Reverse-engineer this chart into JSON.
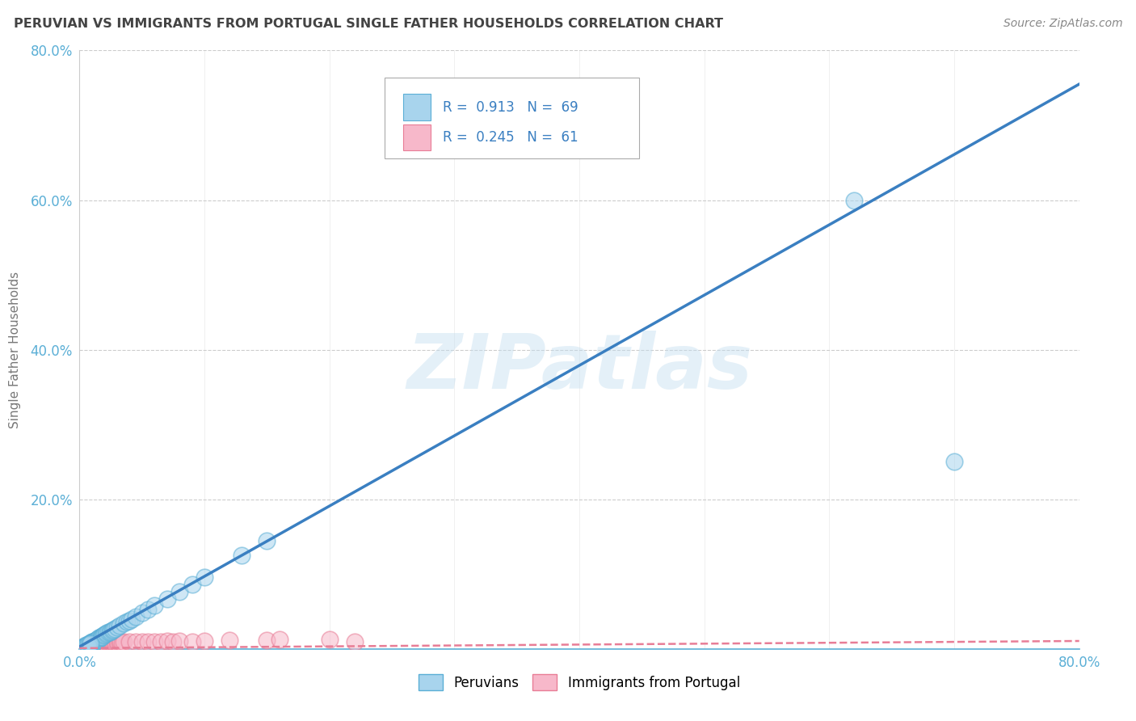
{
  "title": "PERUVIAN VS IMMIGRANTS FROM PORTUGAL SINGLE FATHER HOUSEHOLDS CORRELATION CHART",
  "source": "Source: ZipAtlas.com",
  "ylabel": "Single Father Households",
  "xlim": [
    0.0,
    0.8
  ],
  "ylim": [
    0.0,
    0.8
  ],
  "watermark_text": "ZIPatlas",
  "peruvian_color": "#a8d4ed",
  "portugal_color": "#f7b8ca",
  "peruvian_edge_color": "#5bafd6",
  "portugal_edge_color": "#e87d96",
  "peruvian_line_color": "#3a7fc1",
  "portugal_line_color": "#e87d96",
  "R_peruvian": 0.913,
  "N_peruvian": 69,
  "R_portugal": 0.245,
  "N_portugal": 61,
  "legend_label_peru": "Peruvians",
  "legend_label_port": "Immigrants from Portugal",
  "background_color": "#ffffff",
  "grid_color": "#cccccc",
  "title_color": "#444444",
  "axis_tick_color": "#5bafd6",
  "legend_text_color": "#3a7fc1",
  "peruvian_line_slope": 0.94,
  "peruvian_line_intercept": 0.003,
  "portugal_line_slope": 0.012,
  "portugal_line_intercept": 0.001,
  "peruvian_scatter_x": [
    0.001,
    0.002,
    0.003,
    0.003,
    0.004,
    0.004,
    0.005,
    0.005,
    0.005,
    0.006,
    0.006,
    0.007,
    0.007,
    0.008,
    0.008,
    0.009,
    0.009,
    0.01,
    0.01,
    0.01,
    0.011,
    0.011,
    0.012,
    0.012,
    0.013,
    0.013,
    0.014,
    0.015,
    0.015,
    0.015,
    0.016,
    0.017,
    0.018,
    0.018,
    0.019,
    0.02,
    0.021,
    0.022,
    0.023,
    0.024,
    0.025,
    0.026,
    0.027,
    0.028,
    0.03,
    0.032,
    0.035,
    0.038,
    0.04,
    0.042,
    0.045,
    0.05,
    0.055,
    0.06,
    0.07,
    0.08,
    0.09,
    0.1,
    0.13,
    0.15,
    0.003,
    0.004,
    0.005,
    0.006,
    0.007,
    0.008,
    0.009,
    0.62,
    0.7
  ],
  "peruvian_scatter_y": [
    0.001,
    0.002,
    0.003,
    0.001,
    0.003,
    0.002,
    0.004,
    0.003,
    0.005,
    0.004,
    0.005,
    0.006,
    0.005,
    0.007,
    0.006,
    0.008,
    0.007,
    0.009,
    0.008,
    0.01,
    0.01,
    0.009,
    0.011,
    0.01,
    0.012,
    0.011,
    0.013,
    0.014,
    0.013,
    0.015,
    0.015,
    0.016,
    0.017,
    0.016,
    0.018,
    0.019,
    0.02,
    0.021,
    0.022,
    0.023,
    0.024,
    0.025,
    0.026,
    0.027,
    0.029,
    0.031,
    0.034,
    0.037,
    0.038,
    0.04,
    0.043,
    0.048,
    0.053,
    0.058,
    0.067,
    0.076,
    0.086,
    0.096,
    0.125,
    0.145,
    0.002,
    0.003,
    0.004,
    0.005,
    0.005,
    0.006,
    0.007,
    0.6,
    0.25
  ],
  "portugal_scatter_x": [
    0.001,
    0.002,
    0.002,
    0.003,
    0.003,
    0.004,
    0.004,
    0.005,
    0.005,
    0.006,
    0.006,
    0.007,
    0.007,
    0.008,
    0.008,
    0.009,
    0.009,
    0.01,
    0.01,
    0.011,
    0.011,
    0.012,
    0.013,
    0.014,
    0.015,
    0.016,
    0.017,
    0.018,
    0.019,
    0.02,
    0.021,
    0.022,
    0.023,
    0.024,
    0.025,
    0.026,
    0.027,
    0.028,
    0.029,
    0.03,
    0.031,
    0.032,
    0.033,
    0.034,
    0.035,
    0.04,
    0.045,
    0.05,
    0.055,
    0.06,
    0.065,
    0.07,
    0.075,
    0.08,
    0.09,
    0.1,
    0.12,
    0.15,
    0.16,
    0.2,
    0.22
  ],
  "portugal_scatter_y": [
    0.001,
    0.001,
    0.002,
    0.001,
    0.002,
    0.002,
    0.001,
    0.003,
    0.002,
    0.003,
    0.002,
    0.003,
    0.004,
    0.003,
    0.004,
    0.003,
    0.004,
    0.004,
    0.005,
    0.004,
    0.005,
    0.004,
    0.005,
    0.005,
    0.006,
    0.005,
    0.006,
    0.006,
    0.007,
    0.006,
    0.007,
    0.006,
    0.007,
    0.007,
    0.008,
    0.007,
    0.008,
    0.007,
    0.008,
    0.008,
    0.007,
    0.008,
    0.009,
    0.008,
    0.009,
    0.009,
    0.009,
    0.01,
    0.01,
    0.009,
    0.01,
    0.011,
    0.01,
    0.011,
    0.01,
    0.011,
    0.012,
    0.012,
    0.013,
    0.013,
    0.01
  ]
}
